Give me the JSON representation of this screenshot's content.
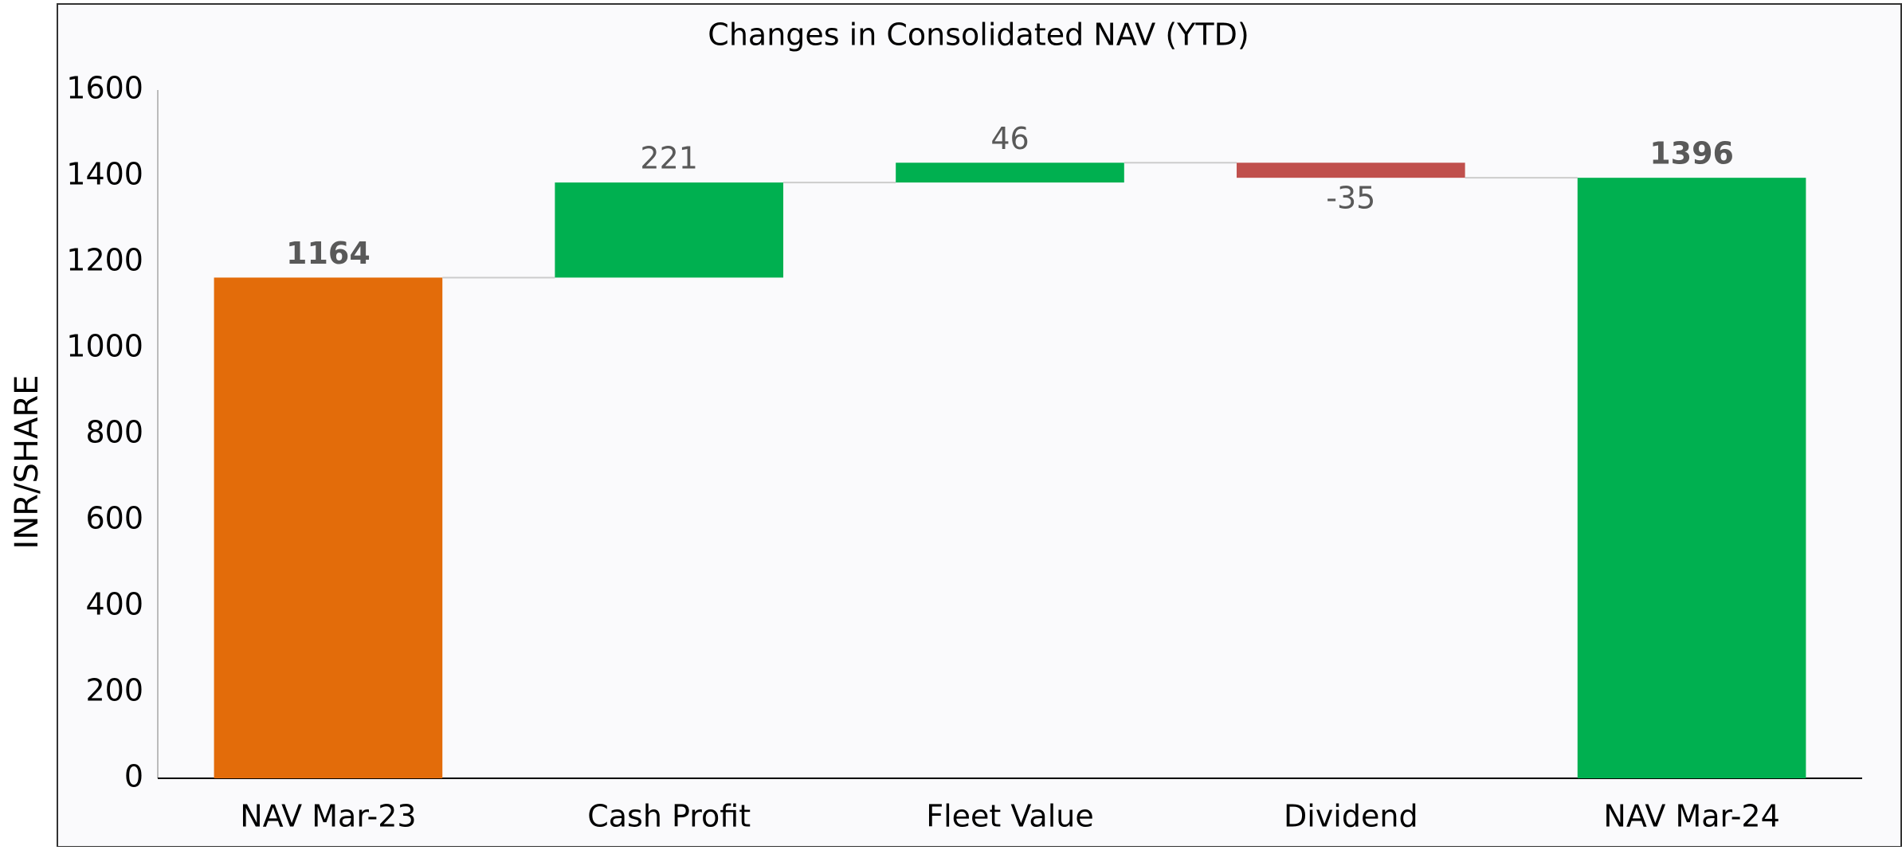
{
  "chart_data": {
    "type": "waterfall",
    "title": "Changes in Consolidated NAV (YTD)",
    "y_label": "INR/SHARE",
    "categories": [
      "NAV Mar-23",
      "Cash Profit",
      "Fleet Value",
      "Dividend",
      "NAV Mar-24"
    ],
    "values": [
      1164,
      221,
      46,
      -35,
      1396
    ],
    "totals": [
      true,
      false,
      false,
      false,
      true
    ],
    "colors": [
      "#e36c0a",
      "#00b050",
      "#00b050",
      "#c0504d",
      "#00b050"
    ],
    "ylim": [
      0,
      1600
    ],
    "yticks": [
      0,
      200,
      400,
      600,
      800,
      1000,
      1200,
      1400,
      1600
    ],
    "grid": false
  }
}
